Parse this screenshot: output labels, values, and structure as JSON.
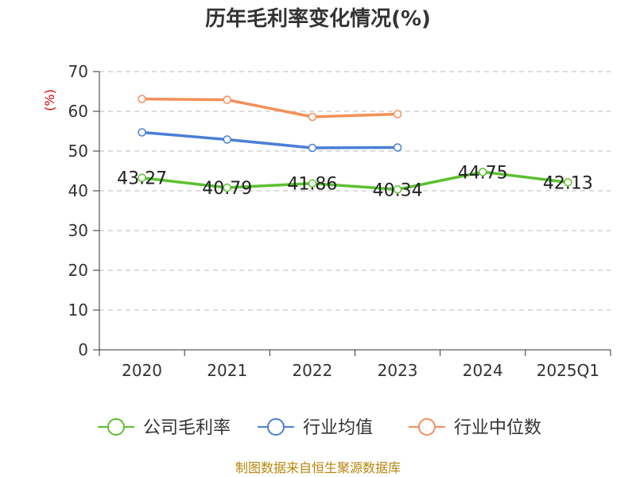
{
  "chart_data": {
    "type": "line",
    "title": "历年毛利率变化情况(%)",
    "ylabel": "(%)",
    "xlabel": "",
    "categories": [
      "2020",
      "2021",
      "2022",
      "2023",
      "2024",
      "2025Q1"
    ],
    "ylim": [
      0,
      70
    ],
    "yticks": [
      0,
      10,
      20,
      30,
      40,
      50,
      60,
      70
    ],
    "grid": true,
    "legend_position": "bottom",
    "series": [
      {
        "name": "公司毛利率",
        "color": "#5cc12e",
        "values": [
          43.27,
          40.79,
          41.86,
          40.34,
          44.75,
          42.13
        ],
        "labels": [
          "43.27",
          "40.79",
          "41.86",
          "40.34",
          "44.75",
          "42.13"
        ]
      },
      {
        "name": "行业均值",
        "color": "#4a7fd6",
        "values": [
          54.7,
          52.9,
          50.8,
          50.9,
          null,
          null
        ]
      },
      {
        "name": "行业中位数",
        "color": "#f59058",
        "values": [
          63.1,
          62.9,
          58.6,
          59.3,
          null,
          null
        ]
      }
    ],
    "source": "制图数据来自恒生聚源数据库"
  }
}
